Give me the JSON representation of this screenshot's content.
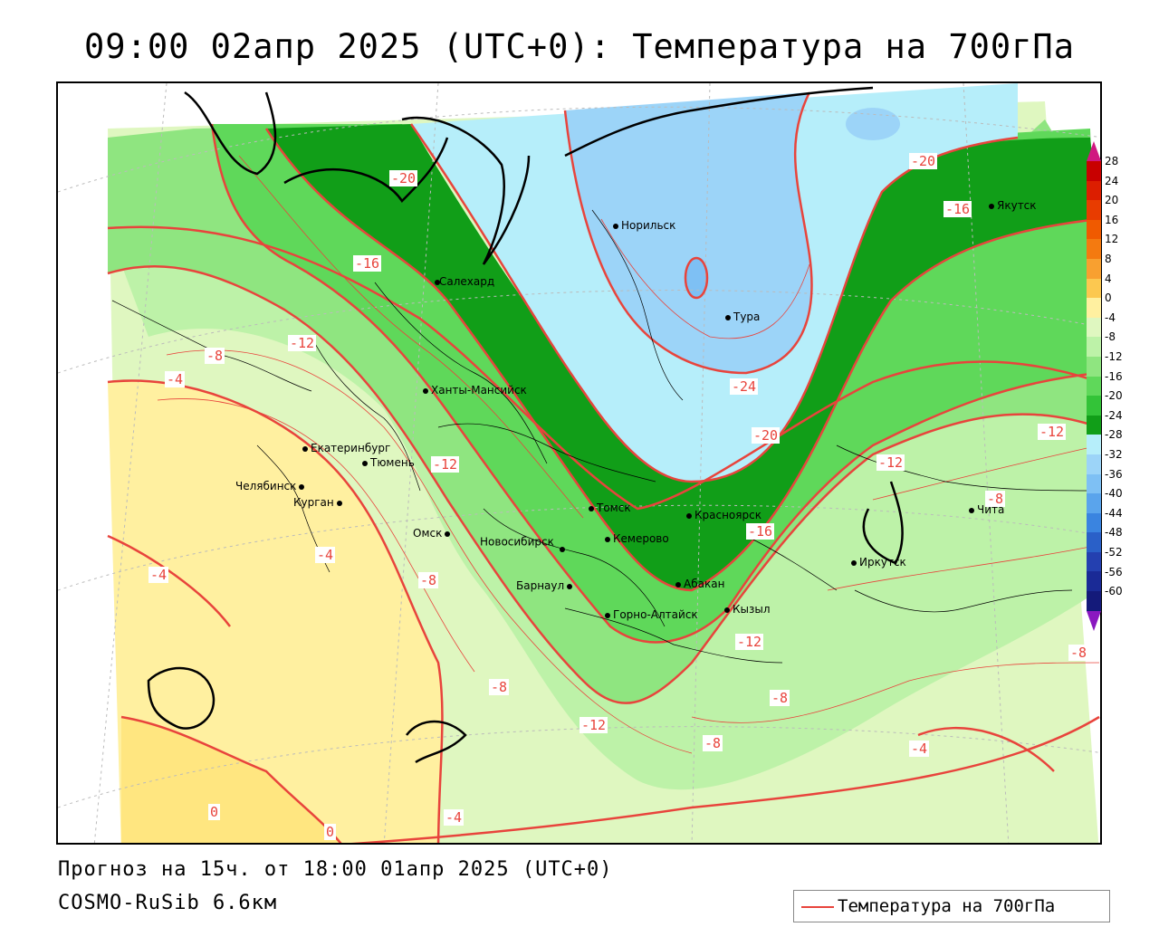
{
  "title": "09:00 02апр 2025 (UTC+0): Температура на 700гПа",
  "footer": {
    "forecast": "Прогноз на 15ч. от 18:00 01апр 2025 (UTC+0)",
    "model": "COSMO-RuSib 6.6км"
  },
  "legend": {
    "label": "Температура на 700гПа",
    "color": "#e8443c"
  },
  "colorbar": {
    "labels": [
      "28",
      "24",
      "20",
      "16",
      "12",
      "8",
      "4",
      "0",
      "-4",
      "-8",
      "-12",
      "-16",
      "-20",
      "-24",
      "-28",
      "-32",
      "-36",
      "-40",
      "-44",
      "-48",
      "-52",
      "-56",
      "-60"
    ],
    "colors": [
      "#c80000",
      "#dc1e00",
      "#e83c00",
      "#f05a00",
      "#f47a10",
      "#f8a030",
      "#fcc850",
      "#fff0a0",
      "#dff7c0",
      "#bdf2a8",
      "#8fe580",
      "#5fd85a",
      "#33c338",
      "#119e18",
      "#b6eefa",
      "#9cd4f8",
      "#7ec0f4",
      "#5aa4ec",
      "#3a84e0",
      "#2a60c8",
      "#2440b0",
      "#1a2a96",
      "#141a7a"
    ],
    "top_color": "#d01880",
    "bottom_color": "#8a18c0"
  },
  "cities": [
    {
      "name": "Норильск"
    },
    {
      "name": "Якутск"
    },
    {
      "name": "Салехард"
    },
    {
      "name": "Тура"
    },
    {
      "name": "Ханты-Мансийск"
    },
    {
      "name": "Екатеринбург"
    },
    {
      "name": "Тюмень"
    },
    {
      "name": "Челябинск"
    },
    {
      "name": "Курган"
    },
    {
      "name": "Омск"
    },
    {
      "name": "Новосибирск"
    },
    {
      "name": "Томск"
    },
    {
      "name": "Кемерово"
    },
    {
      "name": "Красноярск"
    },
    {
      "name": "Барнаул"
    },
    {
      "name": "Абакан"
    },
    {
      "name": "Горно-Алтайск"
    },
    {
      "name": "Кызыл"
    },
    {
      "name": "Иркутск"
    },
    {
      "name": "Чита"
    }
  ],
  "contour_labels": [
    "-20",
    "-20",
    "-16",
    "-16",
    "-24",
    "-8",
    "-12",
    "-4",
    "-20",
    "-12",
    "-12",
    "-12",
    "-16",
    "-8",
    "-4",
    "-8",
    "-4",
    "-12",
    "-8",
    "-8",
    "-12",
    "-8",
    "-8",
    "-4",
    "0",
    "0",
    "-4"
  ]
}
